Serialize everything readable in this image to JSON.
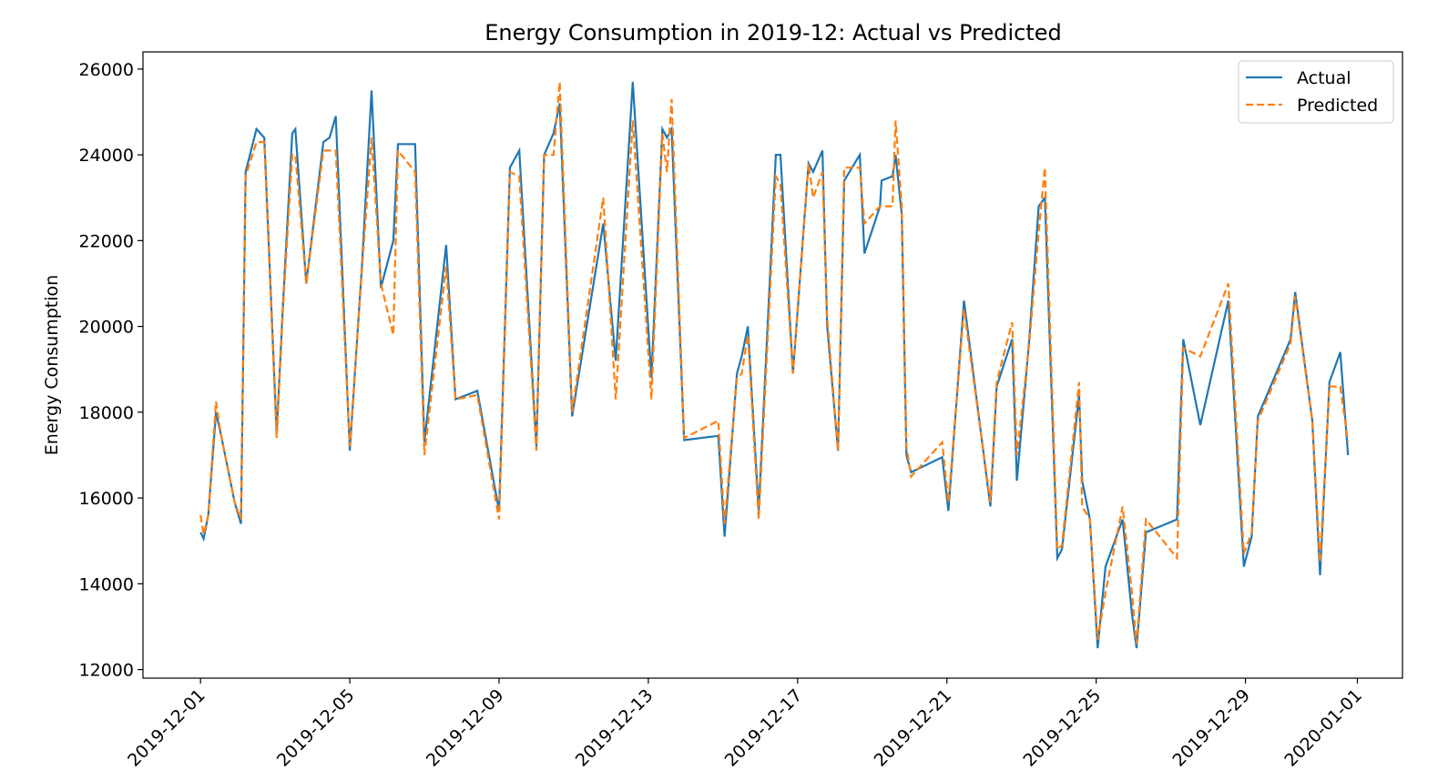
{
  "chart_data": {
    "type": "line",
    "title": "Energy Consumption in 2019-12: Actual vs Predicted",
    "ylabel": "Energy Consumption",
    "x": [
      "2019-12-01 00:00",
      "2019-12-01 02:00",
      "2019-12-01 05:00",
      "2019-12-01 10:00",
      "2019-12-01 13:00",
      "2019-12-01 22:00",
      "2019-12-02 02:00",
      "2019-12-02 05:00",
      "2019-12-02 12:00",
      "2019-12-02 17:00",
      "2019-12-03 01:00",
      "2019-12-03 05:00",
      "2019-12-03 11:00",
      "2019-12-03 13:00",
      "2019-12-03 20:00",
      "2019-12-04 07:00",
      "2019-12-04 11:00",
      "2019-12-04 15:00",
      "2019-12-05 00:00",
      "2019-12-05 08:00",
      "2019-12-05 14:00",
      "2019-12-05 20:00",
      "2019-12-06 04:00",
      "2019-12-06 07:00",
      "2019-12-06 18:00",
      "2019-12-07 00:00",
      "2019-12-07 14:00",
      "2019-12-07 20:00",
      "2019-12-08 10:00",
      "2019-12-09 00:00",
      "2019-12-09 07:00",
      "2019-12-09 13:00",
      "2019-12-10 00:00",
      "2019-12-10 05:00",
      "2019-12-10 11:00",
      "2019-12-10 15:00",
      "2019-12-10 23:00",
      "2019-12-11 19:00",
      "2019-12-12 03:00",
      "2019-12-12 14:00",
      "2019-12-13 02:00",
      "2019-12-13 09:00",
      "2019-12-13 12:00",
      "2019-12-13 15:00",
      "2019-12-13 23:00",
      "2019-12-14 21:00",
      "2019-12-15 01:00",
      "2019-12-15 09:00",
      "2019-12-15 12:00",
      "2019-12-15 16:00",
      "2019-12-15 23:00",
      "2019-12-16 10:00",
      "2019-12-16 13:00",
      "2019-12-16 21:00",
      "2019-12-17 07:00",
      "2019-12-17 10:00",
      "2019-12-17 16:00",
      "2019-12-17 19:00",
      "2019-12-18 02:00",
      "2019-12-18 06:00",
      "2019-12-18 16:00",
      "2019-12-18 19:00",
      "2019-12-19 05:00",
      "2019-12-19 06:00",
      "2019-12-19 13:00",
      "2019-12-19 15:00",
      "2019-12-19 19:00",
      "2019-12-19 22:00",
      "2019-12-20 01:00",
      "2019-12-20 21:00",
      "2019-12-21 01:00",
      "2019-12-21 11:00",
      "2019-12-22 04:00",
      "2019-12-22 08:00",
      "2019-12-22 18:00",
      "2019-12-22 21:00",
      "2019-12-23 05:00",
      "2019-12-23 11:00",
      "2019-12-23 15:00",
      "2019-12-23 23:00",
      "2019-12-24 02:00",
      "2019-12-24 13:00",
      "2019-12-24 15:00",
      "2019-12-24 20:00",
      "2019-12-25 01:00",
      "2019-12-25 06:00",
      "2019-12-25 17:00",
      "2019-12-25 23:00",
      "2019-12-26 02:00",
      "2019-12-26 08:00",
      "2019-12-27 04:00",
      "2019-12-27 08:00",
      "2019-12-27 19:00",
      "2019-12-28 13:00",
      "2019-12-28 23:00",
      "2019-12-29 04:00",
      "2019-12-29 08:00",
      "2019-12-30 05:00",
      "2019-12-30 08:00",
      "2019-12-30 19:00",
      "2019-12-31 00:00",
      "2019-12-31 06:00",
      "2019-12-31 13:00",
      "2019-12-31 18:00"
    ],
    "series": [
      {
        "name": "Actual",
        "color": "#1f77b4",
        "style": "solid",
        "values": [
          15200,
          15050,
          15600,
          18000,
          17500,
          15900,
          15400,
          23600,
          24600,
          24400,
          17500,
          20500,
          24500,
          24600,
          21000,
          24300,
          24400,
          24900,
          17100,
          21500,
          25500,
          20900,
          22000,
          24250,
          24250,
          17300,
          21900,
          18300,
          18500,
          15700,
          23700,
          24100,
          17200,
          24000,
          24500,
          25200,
          17900,
          22400,
          19200,
          25700,
          18800,
          24600,
          24400,
          24600,
          17350,
          17450,
          15100,
          18900,
          19300,
          20000,
          15700,
          24000,
          24000,
          18900,
          23800,
          23600,
          24100,
          20000,
          17100,
          23400,
          24000,
          21700,
          22800,
          23400,
          23500,
          24000,
          22600,
          17000,
          16600,
          16950,
          15700,
          20600,
          15800,
          18600,
          19700,
          16400,
          19700,
          22800,
          23000,
          14600,
          14800,
          18400,
          16400,
          15500,
          12500,
          14400,
          15500,
          13300,
          12500,
          15200,
          15500,
          19700,
          17700,
          20600,
          14400,
          15100,
          17900,
          19700,
          20800,
          17800,
          14200,
          18700,
          19400,
          17000
        ]
      },
      {
        "name": "Predicted",
        "color": "#ff7f0e",
        "style": "dashed",
        "values": [
          15600,
          15150,
          15600,
          18250,
          17500,
          15900,
          15500,
          23500,
          24300,
          24300,
          17400,
          20400,
          24000,
          24000,
          21000,
          24100,
          24100,
          24100,
          17200,
          21400,
          24400,
          21000,
          19800,
          24100,
          23600,
          17000,
          21400,
          18300,
          18400,
          15500,
          23600,
          23500,
          17100,
          24000,
          24000,
          25700,
          18000,
          23000,
          18300,
          24800,
          18300,
          24500,
          23600,
          25300,
          17400,
          17800,
          15400,
          18800,
          18900,
          19800,
          15500,
          23500,
          23300,
          18900,
          23800,
          23000,
          23600,
          20200,
          17100,
          23700,
          23700,
          22400,
          22800,
          22800,
          22800,
          24800,
          22800,
          17200,
          16500,
          17300,
          15900,
          20400,
          15900,
          18700,
          20100,
          17000,
          19600,
          22200,
          23700,
          14800,
          14900,
          18700,
          15800,
          15500,
          12700,
          13800,
          15800,
          13800,
          12600,
          15500,
          14600,
          19500,
          19300,
          21000,
          14700,
          15200,
          17800,
          19600,
          20700,
          17800,
          14500,
          18600,
          18600,
          17300
        ]
      }
    ],
    "xlim": [
      "2019-11-29 11:00",
      "2020-01-02 05:00"
    ],
    "xticks": [
      "2019-12-01",
      "2019-12-05",
      "2019-12-09",
      "2019-12-13",
      "2019-12-17",
      "2019-12-21",
      "2019-12-25",
      "2019-12-29",
      "2020-01-01"
    ],
    "ylim": [
      11800,
      26400
    ],
    "yticks": [
      12000,
      14000,
      16000,
      18000,
      20000,
      22000,
      24000,
      26000
    ],
    "legend": "upper right"
  }
}
